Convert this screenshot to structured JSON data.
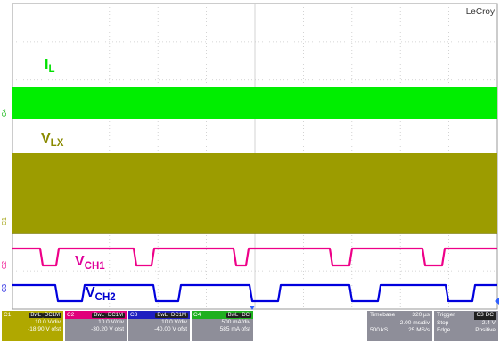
{
  "brand": "LeCroy",
  "labels": {
    "il": {
      "main": "I",
      "sub": "L"
    },
    "vlx": {
      "main": "V",
      "sub": "LX"
    },
    "vch1": {
      "main": "V",
      "sub": "CH1"
    },
    "vch2": {
      "main": "V",
      "sub": "CH2"
    }
  },
  "channel_markers": [
    "C4",
    "C1",
    "C2",
    "C3"
  ],
  "colors": {
    "il": "#00ee00",
    "vlx": "#9c9c00",
    "vch1": "#ee0088",
    "vch2": "#0000dd",
    "grid": "#c8c8c8",
    "panel": "#8e8e99"
  },
  "channels": [
    {
      "id": "C1",
      "tag1": "BwL",
      "tag2": "DC1M",
      "vdiv": "10.0 V/div",
      "offset": "-18.90 V ofst",
      "color": "#b0a800"
    },
    {
      "id": "C2",
      "tag1": "BwL",
      "tag2": "DC1M",
      "vdiv": "10.0 V/div",
      "offset": "-30.20 V ofst",
      "color": "#e0007a"
    },
    {
      "id": "C3",
      "tag1": "BwL",
      "tag2": "DC1M",
      "vdiv": "10.0 V/div",
      "offset": "-40.00 V ofst",
      "color": "#2020c0"
    },
    {
      "id": "C4",
      "tag1": "BwL",
      "tag2": "DC",
      "vdiv": "500 mA/div",
      "offset": "585 mA ofst",
      "color": "#20b020"
    }
  ],
  "timebase": {
    "label": "Timebase",
    "delay": "320 µs",
    "tdiv": "2.00 ms/div",
    "samples": "500 kS",
    "rate": "25 MS/s"
  },
  "trigger": {
    "label": "Trigger",
    "chan": "C3 DC",
    "mode": "Stop",
    "level": "2.4 V",
    "type": "Edge",
    "slope": "Positive"
  }
}
